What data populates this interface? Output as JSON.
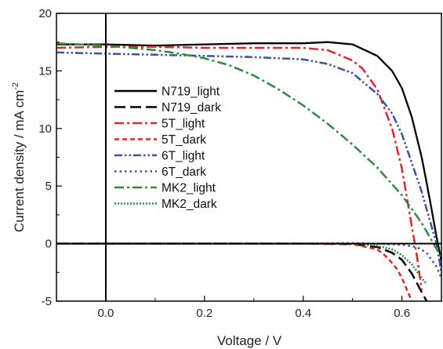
{
  "chart_data": {
    "type": "line",
    "title": "",
    "xlabel": "Voltage / V",
    "ylabel": "Current density / mA cm",
    "ylabel_sup": "-2",
    "xlim": [
      -0.1,
      0.68
    ],
    "ylim": [
      -5,
      20
    ],
    "xticks": [
      0.0,
      0.2,
      0.4,
      0.6
    ],
    "xtick_labels": [
      "0.0",
      "0.2",
      "0.4",
      "0.6"
    ],
    "yticks": [
      -5,
      0,
      5,
      10,
      15,
      20
    ],
    "ytick_labels": [
      "-5",
      "0",
      "5",
      "10",
      "15",
      "20"
    ],
    "grid": false,
    "legend": "left",
    "series": [
      {
        "name": "N719_light",
        "color": "#000000",
        "dash": "solid",
        "x": [
          -0.1,
          0.0,
          0.1,
          0.2,
          0.3,
          0.4,
          0.45,
          0.5,
          0.55,
          0.58,
          0.6,
          0.62,
          0.64,
          0.65,
          0.66,
          0.67,
          0.68
        ],
        "y": [
          17.3,
          17.3,
          17.2,
          17.3,
          17.4,
          17.4,
          17.5,
          17.3,
          16.3,
          15.0,
          13.5,
          11.0,
          7.5,
          5.3,
          3.0,
          0.6,
          -1.5
        ]
      },
      {
        "name": "N719_dark",
        "color": "#000000",
        "dash": "dash",
        "x": [
          -0.1,
          0.0,
          0.1,
          0.2,
          0.3,
          0.4,
          0.5,
          0.55,
          0.58,
          0.6,
          0.62,
          0.64,
          0.65
        ],
        "y": [
          0.0,
          0.0,
          0.0,
          0.0,
          0.0,
          0.0,
          -0.05,
          -0.3,
          -0.8,
          -1.4,
          -2.6,
          -4.2,
          -5.0
        ]
      },
      {
        "name": "5T_light",
        "color": "#e8252a",
        "dash": "dashdot",
        "x": [
          -0.1,
          0.0,
          0.1,
          0.2,
          0.3,
          0.4,
          0.45,
          0.5,
          0.52,
          0.55,
          0.58,
          0.6,
          0.61,
          0.62,
          0.63,
          0.64
        ],
        "y": [
          17.0,
          17.1,
          17.1,
          17.0,
          17.0,
          17.0,
          16.8,
          15.9,
          15.2,
          13.4,
          10.0,
          6.5,
          4.0,
          1.5,
          -1.0,
          -4.0
        ]
      },
      {
        "name": "5T_dark",
        "color": "#e8252a",
        "dash": "shortdash",
        "x": [
          -0.1,
          0.0,
          0.1,
          0.2,
          0.3,
          0.4,
          0.5,
          0.55,
          0.57,
          0.59,
          0.6,
          0.61,
          0.62
        ],
        "y": [
          0.0,
          0.0,
          0.0,
          0.0,
          0.0,
          0.0,
          -0.05,
          -0.5,
          -1.2,
          -2.2,
          -3.0,
          -4.0,
          -5.0
        ]
      },
      {
        "name": "6T_light",
        "color": "#3a52a8",
        "dash": "dashdotdot",
        "x": [
          -0.1,
          0.0,
          0.1,
          0.2,
          0.3,
          0.4,
          0.45,
          0.5,
          0.55,
          0.58,
          0.6,
          0.62,
          0.64,
          0.66,
          0.67,
          0.68
        ],
        "y": [
          16.6,
          16.5,
          16.4,
          16.3,
          16.2,
          16.0,
          15.6,
          14.8,
          13.0,
          11.3,
          9.5,
          7.0,
          4.5,
          1.5,
          0.0,
          -2.5
        ]
      },
      {
        "name": "6T_dark",
        "color": "#3a52a8",
        "dash": "dot",
        "x": [
          -0.1,
          0.0,
          0.1,
          0.2,
          0.3,
          0.4,
          0.5,
          0.55,
          0.6,
          0.63,
          0.65,
          0.67,
          0.68
        ],
        "y": [
          0.0,
          0.0,
          0.0,
          0.0,
          0.0,
          0.0,
          0.05,
          0.0,
          -0.1,
          -0.3,
          -0.8,
          -2.0,
          -3.0
        ]
      },
      {
        "name": "MK2_light",
        "color": "#2e8b3e",
        "dash": "dashdot",
        "x": [
          -0.1,
          0.0,
          0.05,
          0.1,
          0.15,
          0.2,
          0.25,
          0.3,
          0.35,
          0.4,
          0.45,
          0.5,
          0.55,
          0.6,
          0.62,
          0.64,
          0.66,
          0.68
        ],
        "y": [
          17.4,
          17.2,
          17.0,
          16.8,
          16.5,
          16.1,
          15.5,
          14.6,
          13.4,
          12.0,
          10.4,
          8.6,
          6.6,
          4.2,
          3.0,
          1.8,
          0.3,
          -1.2
        ]
      },
      {
        "name": "MK2_dark",
        "color": "#2e8b3e",
        "dash": "densedot",
        "x": [
          -0.1,
          0.0,
          0.1,
          0.2,
          0.3,
          0.4,
          0.5,
          0.55,
          0.58,
          0.6,
          0.62,
          0.64,
          0.65
        ],
        "y": [
          0.0,
          0.0,
          0.0,
          0.0,
          0.0,
          0.0,
          0.0,
          -0.2,
          -0.5,
          -1.0,
          -1.8,
          -3.0,
          -3.5
        ]
      }
    ]
  }
}
